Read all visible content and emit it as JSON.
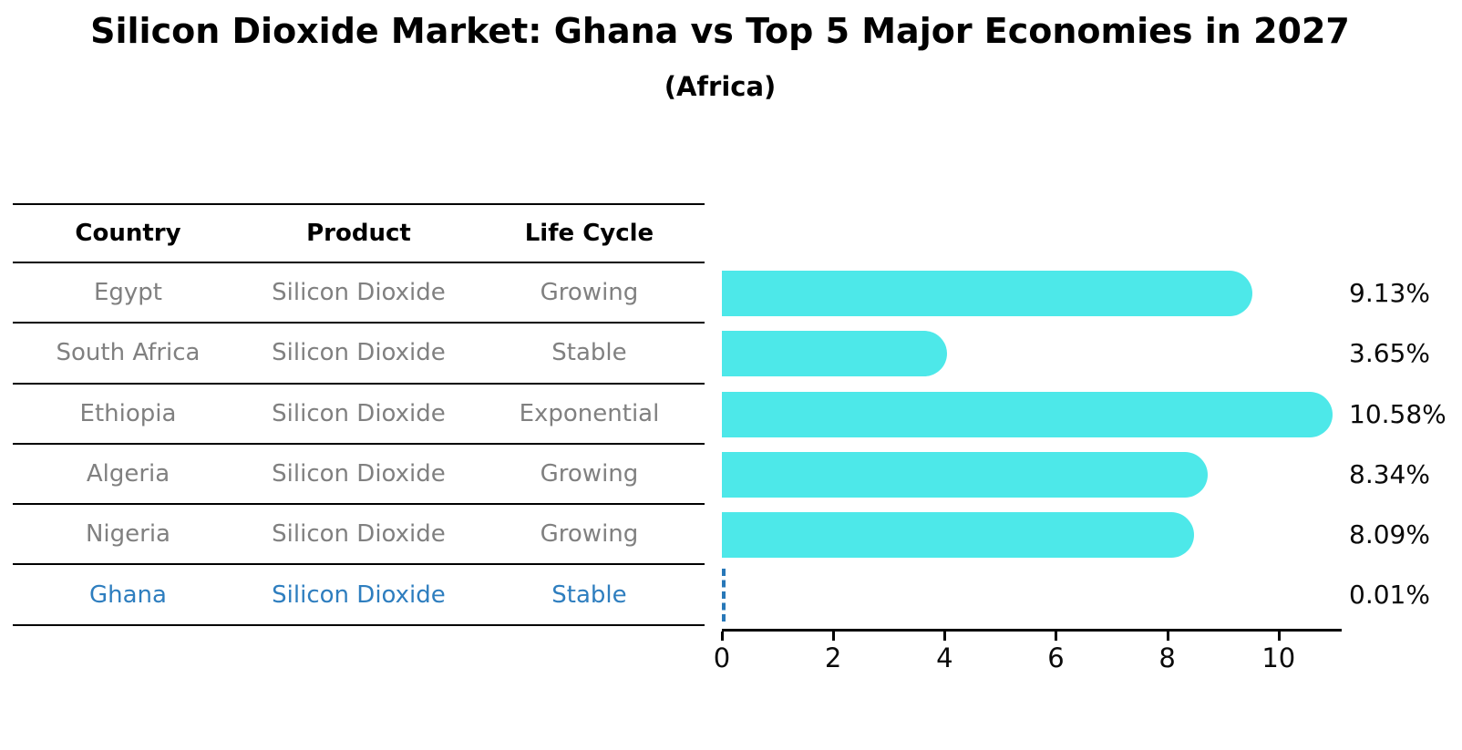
{
  "header": {
    "title": "Silicon Dioxide Market: Ghana vs Top 5 Major Economies in 2027",
    "subtitle": "(Africa)"
  },
  "table": {
    "columns": [
      "Country",
      "Product",
      "Life Cycle"
    ],
    "rows": [
      {
        "country": "Egypt",
        "product": "Silicon Dioxide",
        "life_cycle": "Growing",
        "highlight": false
      },
      {
        "country": "South Africa",
        "product": "Silicon Dioxide",
        "life_cycle": "Stable",
        "highlight": false
      },
      {
        "country": "Ethiopia",
        "product": "Silicon Dioxide",
        "life_cycle": "Exponential",
        "highlight": false
      },
      {
        "country": "Algeria",
        "product": "Silicon Dioxide",
        "life_cycle": "Growing",
        "highlight": false
      },
      {
        "country": "Nigeria",
        "product": "Silicon Dioxide",
        "life_cycle": "Growing",
        "highlight": false
      },
      {
        "country": "Ghana",
        "product": "Silicon Dioxide",
        "life_cycle": "Stable",
        "highlight": true
      }
    ]
  },
  "chart_data": {
    "type": "bar",
    "orientation": "horizontal",
    "title": "Silicon Dioxide Market: Ghana vs Top 5 Major Economies in 2027 (Africa)",
    "categories": [
      "Egypt",
      "South Africa",
      "Ethiopia",
      "Algeria",
      "Nigeria",
      "Ghana"
    ],
    "values": [
      9.13,
      3.65,
      10.58,
      8.34,
      8.09,
      0.01
    ],
    "value_labels": [
      "9.13%",
      "3.65%",
      "10.58%",
      "8.34%",
      "8.09%",
      "0.01%"
    ],
    "x_ticks": [
      0,
      2,
      4,
      6,
      8,
      10
    ],
    "xlim": [
      0,
      11.1
    ],
    "grid": false,
    "legend": false,
    "bar_color": "#4DE8E9",
    "highlight_text_color": "#2E7EBF",
    "highlight_marker_color": "#2878B8",
    "highlight_category": "Ghana"
  }
}
